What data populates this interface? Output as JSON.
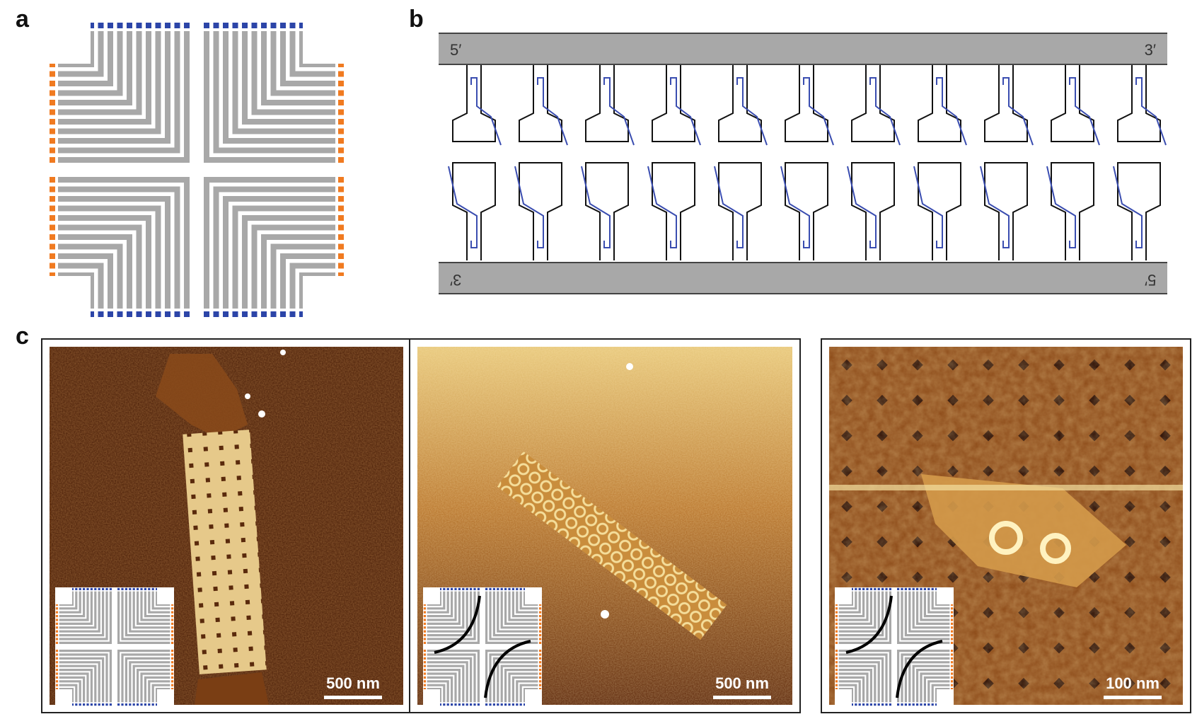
{
  "panels": {
    "a": {
      "letter": "a"
    },
    "b": {
      "letter": "b",
      "top_left": "5′",
      "top_right": "3′",
      "bottom_left": "3′",
      "bottom_right": "5′",
      "stem_count": 11
    },
    "c": {
      "letter": "c",
      "images": [
        {
          "scale": "500 nm"
        },
        {
          "scale": "500 nm"
        },
        {
          "scale": "100 nm"
        }
      ]
    }
  },
  "colors": {
    "staple_gray": "#a8a8a8",
    "blue_end": "#2c45a8",
    "orange_end": "#f07a20",
    "strand_blue": "#3a4db0",
    "afm_dark": "#4a1e08",
    "afm_light": "#f1dc9a"
  }
}
